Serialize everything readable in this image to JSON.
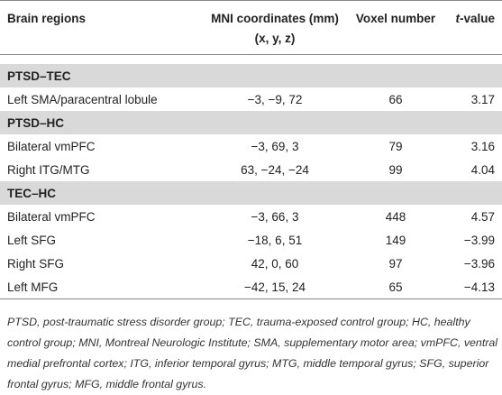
{
  "table": {
    "header": [
      "Brain regions",
      [
        "MNI coordinates (mm)",
        "(x, y, z)"
      ],
      "Voxel number",
      [
        "t",
        "-value"
      ]
    ],
    "sections": [
      {
        "label": "PTSD–TEC",
        "rows": [
          [
            "Left SMA/paracentral lobule",
            "−3, −9, 72",
            "66",
            "3.17"
          ]
        ]
      },
      {
        "label": "PTSD–HC",
        "rows": [
          [
            "Bilateral vmPFC",
            "−3, 69, 3",
            "79",
            "3.16"
          ],
          [
            "Right ITG/MTG",
            "63, −24, −24",
            "99",
            "4.04"
          ]
        ]
      },
      {
        "label": "TEC–HC",
        "rows": [
          [
            "Bilateral vmPFC",
            "−3, 66, 3",
            "448",
            "4.57"
          ],
          [
            "Left SFG",
            "−18, 6, 51",
            "149",
            "−3.99"
          ],
          [
            "Right SFG",
            "42, 0, 60",
            "97",
            "−3.96"
          ],
          [
            "Left MFG",
            "−42, 15, 24",
            "65",
            "−4.13"
          ]
        ]
      }
    ]
  },
  "footnote": "PTSD, post-traumatic stress disorder group; TEC, trauma-exposed control group; HC, healthy control group; MNI, Montreal Neurologic Institute; SMA, supplementary motor area; vmPFC, ventral medial prefrontal cortex; ITG, inferior temporal gyrus; MTG, middle temporal gyrus; SFG, superior frontal gyrus; MFG, middle frontal gyrus."
}
